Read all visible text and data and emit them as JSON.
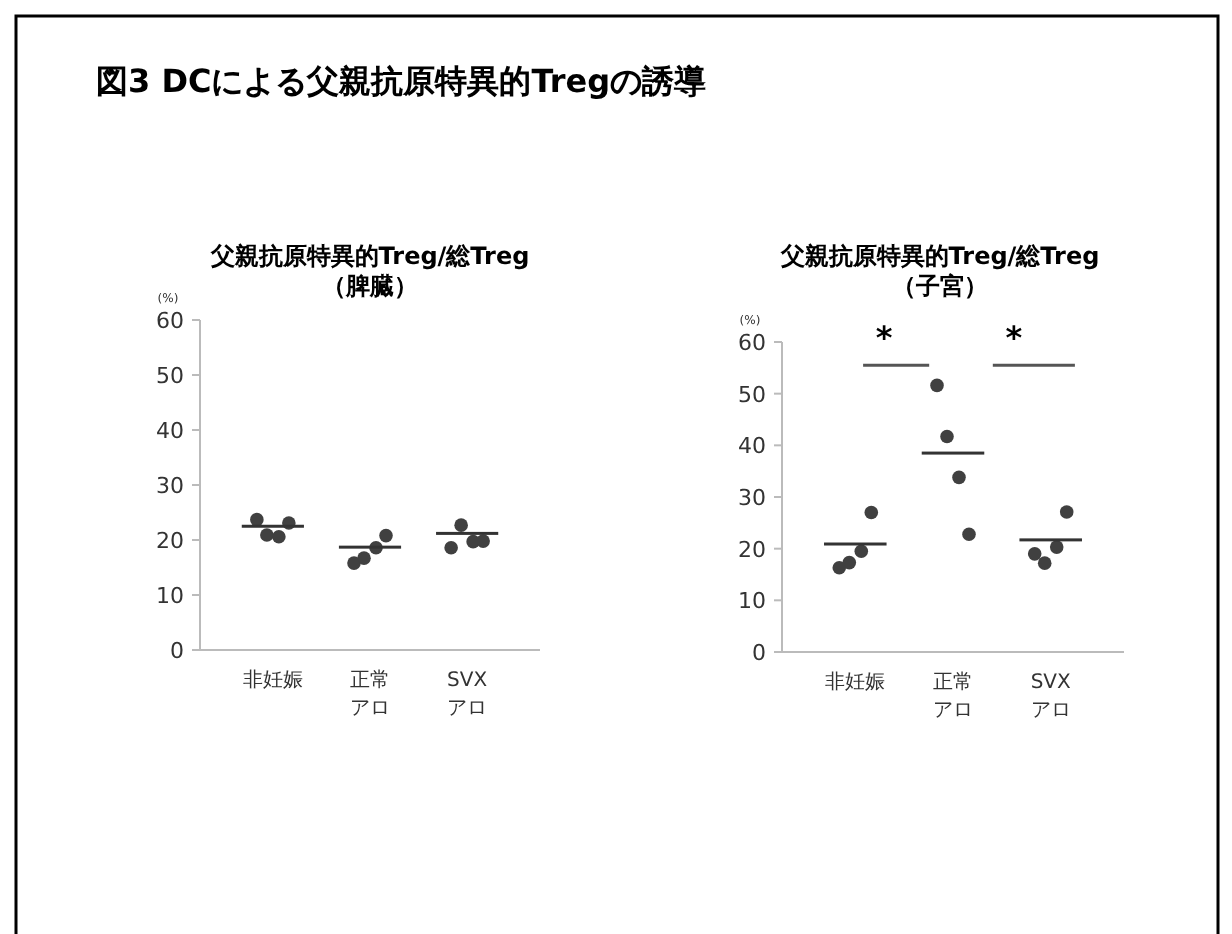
{
  "chart_data": [
    {
      "type": "scatter",
      "title": "図3  DCによる父親抗原特異的Tregの誘導",
      "subtitle": "父親抗原特異的Treg/総Treg\n（脾臓）",
      "ylabel": "(%)",
      "categories": [
        "非妊娠",
        "正常アロ",
        "SVXアロ"
      ],
      "ylim": [
        0,
        60
      ],
      "yticks": [
        0,
        10,
        20,
        30,
        40,
        50,
        60
      ],
      "series": [
        {
          "type": "scatter",
          "marker": "circle",
          "color": "#404040",
          "x": [
            "非妊娠",
            "非妊娠",
            "非妊娠",
            "非妊娠",
            "正常アロ",
            "正常アロ",
            "正常アロ",
            "正常アロ",
            "SVXアロ",
            "SVXアロ",
            "SVXアロ",
            "SVXアロ"
          ],
          "values": [
            23.7,
            20.9,
            20.6,
            23.1,
            15.8,
            16.7,
            18.6,
            20.8,
            18.6,
            22.7,
            19.7,
            19.8
          ]
        },
        {
          "type": "bar",
          "color": "#333333",
          "base": [
            22.5,
            18.7,
            21.2
          ],
          "values": [
            0,
            0,
            0
          ]
        }
      ]
    },
    {
      "type": "scatter",
      "subtitle": "父親抗原特異的Treg/総Treg\n（子宮）",
      "ylabel": "(%)",
      "categories": [
        "非妊娠",
        "正常アロ",
        "SVXアロ"
      ],
      "ylim": [
        0,
        60
      ],
      "yticks": [
        0,
        10,
        20,
        30,
        40,
        50,
        60
      ],
      "annotations": [
        "*",
        "*"
      ],
      "series": [
        {
          "type": "scatter",
          "marker": "circle",
          "color": "#404040",
          "x": [
            "非妊娠",
            "非妊娠",
            "非妊娠",
            "非妊娠",
            "正常アロ",
            "正常アロ",
            "正常アロ",
            "正常アロ",
            "SVXアロ",
            "SVXアロ",
            "SVXアロ",
            "SVXアロ"
          ],
          "values": [
            16.3,
            17.3,
            19.5,
            27.0,
            51.6,
            41.7,
            33.8,
            22.8,
            19.0,
            17.2,
            20.3,
            27.1
          ]
        },
        {
          "type": "bar",
          "color": "#333333",
          "base": [
            20.9,
            38.5,
            21.7
          ],
          "values": [
            0,
            0,
            0
          ]
        }
      ]
    }
  ]
}
